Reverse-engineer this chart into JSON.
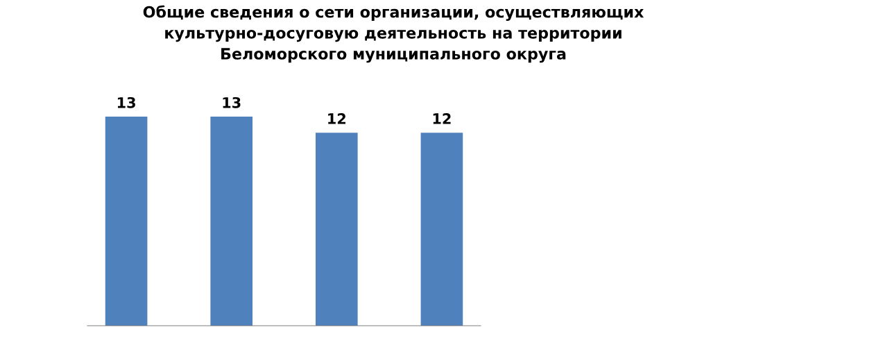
{
  "chart_data": {
    "type": "bar",
    "title": "Общие сведения о сети организации, осуществляющих\nкультурно-досуговую деятельность на территории\nБеломорского муниципального округа",
    "categories": [
      null,
      null,
      null,
      null
    ],
    "values": [
      13,
      13,
      12,
      12
    ],
    "color": "#4f81bd",
    "data_labels": true,
    "tick_labels": false,
    "grid": false,
    "legend": false
  }
}
